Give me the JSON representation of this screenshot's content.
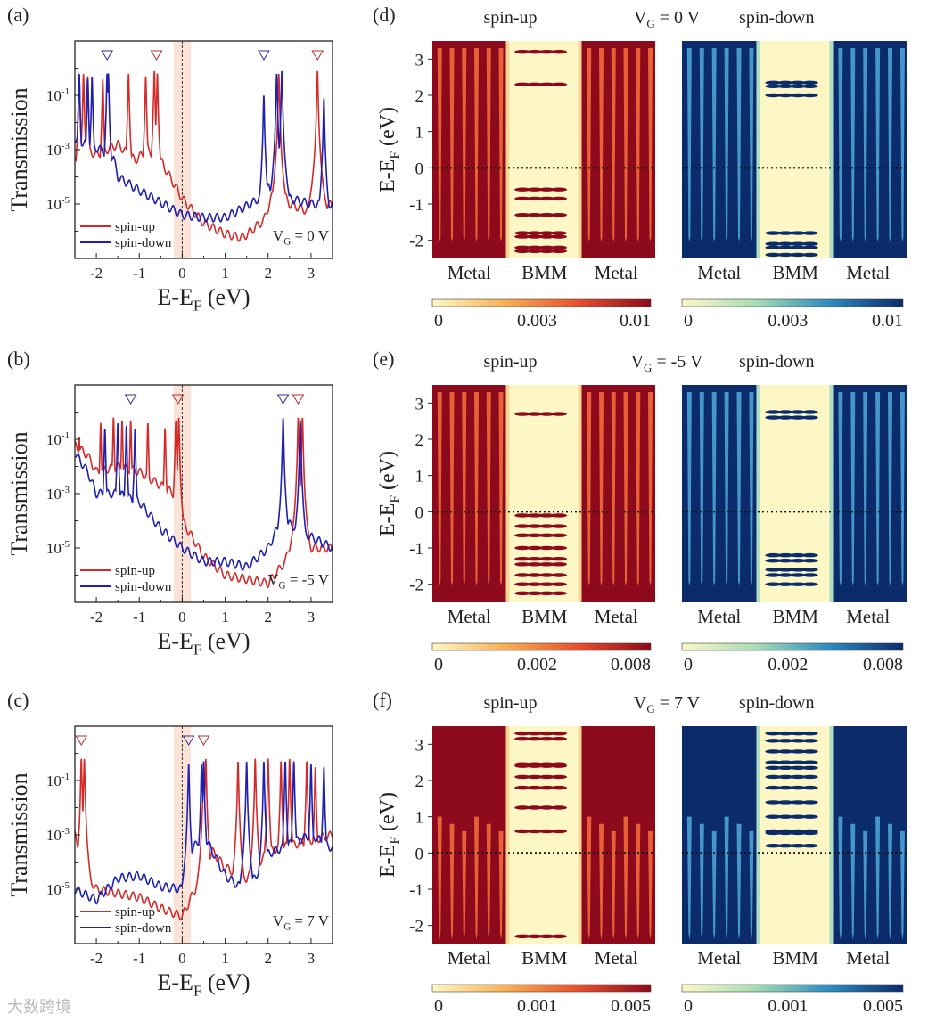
{
  "chart_data": [
    {
      "panel": "(a)",
      "type": "line",
      "gate": {
        "main": "V",
        "sub": "G",
        "tail": " = 0 V"
      },
      "ylabel": "Transmission",
      "xlabel": {
        "main": "E-E",
        "sub": "F",
        "tail": " (eV)"
      },
      "xlim": [
        -2.5,
        3.5
      ],
      "ylim_log10": [
        -7,
        1
      ],
      "xticks": [
        "-2",
        "-1",
        "0",
        "1",
        "2",
        "3"
      ],
      "yticks": [
        {
          "base": "10",
          "exp": "-1",
          "v": -1
        },
        {
          "base": "10",
          "exp": "-3",
          "v": -3
        },
        {
          "base": "10",
          "exp": "-5",
          "v": -5
        }
      ],
      "shaded_region_eV": [
        -0.2,
        0.2
      ],
      "series": [
        {
          "name": "spin-up",
          "color": "#d42a2a",
          "baseline": [
            [
              -2.5,
              -3.5
            ],
            [
              -2.2,
              -3.0
            ],
            [
              -2,
              -3.2
            ],
            [
              -1.5,
              -2.8
            ],
            [
              -1.1,
              -3.4
            ],
            [
              -0.8,
              -3.0
            ],
            [
              -0.5,
              -3.4
            ],
            [
              0,
              -4.8
            ],
            [
              0.5,
              -5.7
            ],
            [
              1.0,
              -6.1
            ],
            [
              1.4,
              -6.25
            ],
            [
              1.9,
              -5.6
            ],
            [
              2.2,
              -4.2
            ],
            [
              2.5,
              -5.0
            ],
            [
              3.0,
              -5.3
            ],
            [
              3.3,
              -5.1
            ],
            [
              3.5,
              -5.0
            ]
          ],
          "peaks": [
            [
              -2.4,
              -0.2
            ],
            [
              -2.3,
              -0.2
            ],
            [
              -2.2,
              -0.3
            ],
            [
              -1.85,
              -0.4
            ],
            [
              -1.25,
              -0.2
            ],
            [
              -0.85,
              -0.3
            ],
            [
              -0.65,
              -0.1
            ],
            [
              -0.58,
              -0.2
            ],
            [
              2.25,
              -0.2
            ],
            [
              3.15,
              -0.1
            ]
          ],
          "markers": [
            -0.6,
            3.15
          ]
        },
        {
          "name": "spin-down",
          "color": "#2020b0",
          "baseline": [
            [
              -2.5,
              -2.6
            ],
            [
              -2.2,
              -2.8
            ],
            [
              -1.9,
              -3.0
            ],
            [
              -1.6,
              -3.3
            ],
            [
              -1.5,
              -4.0
            ],
            [
              -1.0,
              -4.5
            ],
            [
              0,
              -5.4
            ],
            [
              0.5,
              -5.5
            ],
            [
              1.0,
              -5.5
            ],
            [
              1.7,
              -4.9
            ],
            [
              2.0,
              -4.4
            ],
            [
              2.5,
              -4.8
            ],
            [
              3.0,
              -5.0
            ],
            [
              3.5,
              -5.0
            ]
          ],
          "peaks": [
            [
              -2.4,
              -0.2
            ],
            [
              -2.2,
              -0.4
            ],
            [
              -2.1,
              -0.3
            ],
            [
              -1.75,
              -0.2
            ],
            [
              -1.72,
              -0.2
            ],
            [
              1.9,
              -1.0
            ],
            [
              2.2,
              -0.2
            ],
            [
              2.32,
              -0.1
            ],
            [
              3.3,
              -1.1
            ]
          ],
          "markers": [
            -1.75,
            1.9
          ]
        }
      ]
    },
    {
      "panel": "(b)",
      "type": "line",
      "gate": {
        "main": "V",
        "sub": "G",
        "tail": " = -5 V"
      },
      "ylabel": "Transmission",
      "xlabel": {
        "main": "E-E",
        "sub": "F",
        "tail": " (eV)"
      },
      "xlim": [
        -2.5,
        3.5
      ],
      "ylim_log10": [
        -7,
        1
      ],
      "xticks": [
        "-2",
        "-1",
        "0",
        "1",
        "2",
        "3"
      ],
      "yticks": [
        {
          "base": "10",
          "exp": "-1",
          "v": -1
        },
        {
          "base": "10",
          "exp": "-3",
          "v": -3
        },
        {
          "base": "10",
          "exp": "-5",
          "v": -5
        }
      ],
      "shaded_region_eV": [
        -0.2,
        0.2
      ],
      "series": [
        {
          "name": "spin-up",
          "color": "#d42a2a",
          "baseline": [
            [
              -2.5,
              -1.2
            ],
            [
              -2.2,
              -1.6
            ],
            [
              -2,
              -2.2
            ],
            [
              -1.5,
              -2.0
            ],
            [
              -1.0,
              -2.2
            ],
            [
              -0.6,
              -2.6
            ],
            [
              -0.2,
              -3.0
            ],
            [
              0,
              -4.0
            ],
            [
              0.5,
              -5.3
            ],
            [
              1.0,
              -6.0
            ],
            [
              2.0,
              -6.3
            ],
            [
              2.4,
              -5.5
            ],
            [
              2.7,
              -3.8
            ],
            [
              3.0,
              -5.0
            ],
            [
              3.5,
              -5.0
            ]
          ],
          "peaks": [
            [
              -2.4,
              -0.9
            ],
            [
              -1.9,
              -0.4
            ],
            [
              -1.6,
              -0.2
            ],
            [
              -1.4,
              -0.3
            ],
            [
              -1.2,
              -0.3
            ],
            [
              -0.8,
              -0.4
            ],
            [
              -0.4,
              -0.6
            ],
            [
              -0.15,
              -0.3
            ],
            [
              -0.08,
              -0.2
            ],
            [
              2.7,
              -0.2
            ],
            [
              2.8,
              -0.2
            ]
          ],
          "markers": [
            -0.1,
            2.7
          ]
        },
        {
          "name": "spin-down",
          "color": "#2020b0",
          "baseline": [
            [
              -2.5,
              -1.5
            ],
            [
              -2.2,
              -2.2
            ],
            [
              -2.0,
              -3.0
            ],
            [
              -1.5,
              -3.0
            ],
            [
              -1.0,
              -3.3
            ],
            [
              -0.5,
              -4.3
            ],
            [
              0,
              -5.0
            ],
            [
              0.5,
              -5.5
            ],
            [
              1.0,
              -5.5
            ],
            [
              1.5,
              -5.7
            ],
            [
              2.0,
              -5.0
            ],
            [
              2.3,
              -4.0
            ],
            [
              2.6,
              -4.2
            ],
            [
              3.0,
              -4.6
            ],
            [
              3.5,
              -5.0
            ]
          ],
          "peaks": [
            [
              -1.8,
              -0.6
            ],
            [
              -1.5,
              -0.4
            ],
            [
              -1.3,
              -0.5
            ],
            [
              -1.1,
              -0.6
            ],
            [
              2.35,
              -0.2
            ],
            [
              2.75,
              -0.3
            ]
          ],
          "markers": [
            -1.2,
            2.35
          ]
        }
      ]
    },
    {
      "panel": "(c)",
      "type": "line",
      "gate": {
        "main": "V",
        "sub": "G",
        "tail": " = 7 V"
      },
      "ylabel": "Transmission",
      "xlabel": {
        "main": "E-E",
        "sub": "F",
        "tail": " (eV)"
      },
      "xlim": [
        -2.5,
        3.5
      ],
      "ylim_log10": [
        -7,
        1
      ],
      "xticks": [
        "-2",
        "-1",
        "0",
        "1",
        "2",
        "3"
      ],
      "yticks": [
        {
          "base": "10",
          "exp": "-1",
          "v": -1
        },
        {
          "base": "10",
          "exp": "-3",
          "v": -3
        },
        {
          "base": "10",
          "exp": "-5",
          "v": -5
        }
      ],
      "shaded_region_eV": [
        -0.2,
        0.2
      ],
      "series": [
        {
          "name": "spin-up",
          "color": "#d42a2a",
          "baseline": [
            [
              -2.5,
              -3.0
            ],
            [
              -2.2,
              -4.5
            ],
            [
              -2.0,
              -5.0
            ],
            [
              -1.0,
              -5.3
            ],
            [
              -0.5,
              -5.7
            ],
            [
              0,
              -6.0
            ],
            [
              0.3,
              -5.0
            ],
            [
              0.7,
              -3.6
            ],
            [
              1.0,
              -4.2
            ],
            [
              1.5,
              -4.6
            ],
            [
              2.0,
              -3.6
            ],
            [
              3.0,
              -3.2
            ],
            [
              3.5,
              -3.0
            ]
          ],
          "peaks": [
            [
              -2.35,
              -0.2
            ],
            [
              -2.28,
              -0.2
            ],
            [
              0.5,
              -0.3
            ],
            [
              0.55,
              -0.2
            ],
            [
              1.3,
              -0.3
            ],
            [
              1.7,
              -0.2
            ],
            [
              2.0,
              -0.2
            ],
            [
              2.3,
              -0.3
            ],
            [
              2.5,
              -0.2
            ],
            [
              2.9,
              -0.3
            ],
            [
              3.1,
              -0.5
            ]
          ],
          "markers": [
            -2.35,
            0.5
          ]
        },
        {
          "name": "spin-down",
          "color": "#2020b0",
          "baseline": [
            [
              -2.5,
              -5.0
            ],
            [
              -2.0,
              -5.4
            ],
            [
              -1.5,
              -4.6
            ],
            [
              -1.0,
              -4.5
            ],
            [
              -0.5,
              -4.9
            ],
            [
              0,
              -5.0
            ],
            [
              0.1,
              -3.8
            ],
            [
              0.5,
              -3.0
            ],
            [
              1.0,
              -4.5
            ],
            [
              1.5,
              -5.1
            ],
            [
              2.0,
              -3.7
            ],
            [
              3.0,
              -3.0
            ],
            [
              3.5,
              -3.5
            ]
          ],
          "peaks": [
            [
              0.15,
              -0.4
            ],
            [
              0.45,
              -0.4
            ],
            [
              0.5,
              -0.3
            ],
            [
              1.5,
              -0.3
            ],
            [
              1.9,
              -0.3
            ],
            [
              2.4,
              -0.3
            ],
            [
              2.6,
              -0.3
            ],
            [
              3.0,
              -0.4
            ],
            [
              3.3,
              -0.5
            ]
          ],
          "markers": [
            0.15
          ]
        }
      ]
    },
    {
      "panel": "(d)",
      "type": "heatmap",
      "gate": {
        "main": "V",
        "sub": "G",
        "tail": " = 0 V"
      },
      "ylabel": {
        "main": "E-E",
        "sub": "F",
        "tail": " (eV)"
      },
      "ylim": [
        -2.5,
        3.5
      ],
      "yticks": [
        "3",
        "2",
        "1",
        "0",
        "-1",
        "-2"
      ],
      "columns": [
        "Metal",
        "BMM",
        "Metal"
      ],
      "low_band_below_eV": -2.0,
      "maps": [
        {
          "title": "spin-up",
          "scale": "red",
          "colorbar": [
            "0",
            "0.003",
            "0.01"
          ],
          "bmm_levels": [
            3.2,
            2.3,
            -0.6,
            -0.85,
            -1.3,
            -1.8,
            -1.9,
            -2.2,
            -2.3
          ]
        },
        {
          "title": "spin-down",
          "scale": "blue",
          "colorbar": [
            "0",
            "0.003",
            "0.01"
          ],
          "bmm_levels": [
            2.35,
            2.25,
            2.0,
            -1.8,
            -2.1,
            -2.2,
            -2.4
          ]
        }
      ]
    },
    {
      "panel": "(e)",
      "type": "heatmap",
      "gate": {
        "main": "V",
        "sub": "G",
        "tail": " = -5 V"
      },
      "ylabel": {
        "main": "E-E",
        "sub": "F",
        "tail": " (eV)"
      },
      "ylim": [
        -2.5,
        3.5
      ],
      "yticks": [
        "3",
        "2",
        "1",
        "0",
        "-1",
        "-2"
      ],
      "columns": [
        "Metal",
        "BMM",
        "Metal"
      ],
      "low_band_below_eV": -2.0,
      "maps": [
        {
          "title": "spin-up",
          "scale": "red",
          "colorbar": [
            "0",
            "0.002",
            "0.008"
          ],
          "bmm_levels": [
            2.7,
            -0.1,
            -0.4,
            -0.65,
            -1.0,
            -1.3,
            -1.45,
            -1.75,
            -2.0,
            -2.25
          ]
        },
        {
          "title": "spin-down",
          "scale": "blue",
          "colorbar": [
            "0",
            "0.002",
            "0.008"
          ],
          "bmm_levels": [
            2.75,
            2.6,
            -1.2,
            -1.35,
            -1.6,
            -1.75,
            -2.0
          ]
        }
      ]
    },
    {
      "panel": "(f)",
      "type": "heatmap",
      "gate": {
        "main": "V",
        "sub": "G",
        "tail": " = 7 V"
      },
      "ylabel": {
        "main": "E-E",
        "sub": "F",
        "tail": " (eV)"
      },
      "ylim": [
        -2.5,
        3.5
      ],
      "yticks": [
        "3",
        "2",
        "1",
        "0",
        "-1",
        "-2"
      ],
      "columns": [
        "Metal",
        "BMM",
        "Metal"
      ],
      "low_band_below_eV": null,
      "maps": [
        {
          "title": "spin-up",
          "scale": "red",
          "colorbar": [
            "0",
            "0.001",
            "0.005"
          ],
          "bmm_levels": [
            3.3,
            3.15,
            2.45,
            2.4,
            2.1,
            1.8,
            1.25,
            0.6,
            -2.3
          ]
        },
        {
          "title": "spin-down",
          "scale": "blue",
          "colorbar": [
            "0",
            "0.001",
            "0.005"
          ],
          "bmm_levels": [
            3.3,
            3.1,
            2.8,
            2.5,
            2.35,
            2.1,
            1.8,
            1.4,
            1.0,
            0.6,
            0.55,
            0.2
          ]
        }
      ]
    }
  ],
  "watermark": "大数跨境"
}
